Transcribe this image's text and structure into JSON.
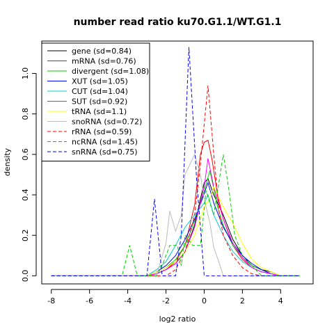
{
  "chart_data": {
    "type": "line",
    "title": "number read ratio ku70.G1.1/WT.G1.1",
    "xlabel": "log2 ratio",
    "ylabel": "density",
    "xlim": [
      -8.5,
      5.7
    ],
    "ylim": [
      -0.04,
      1.16
    ],
    "xticks": [
      -8,
      -6,
      -4,
      -2,
      0,
      2,
      4
    ],
    "yticks": [
      0.0,
      0.2,
      0.4,
      0.6,
      0.8,
      1.0
    ],
    "legend": "top-left",
    "series": [
      {
        "name": "gene (sd=0.84)",
        "color": "#000000",
        "dash": "solid",
        "x": [
          -8,
          -3,
          -2.5,
          -2,
          -1.5,
          -1,
          -0.5,
          -0.2,
          0,
          0.2,
          0.5,
          1,
          1.5,
          2,
          2.5,
          3,
          3.5,
          4,
          5
        ],
        "y": [
          0,
          0,
          0.01,
          0.03,
          0.06,
          0.12,
          0.25,
          0.38,
          0.46,
          0.48,
          0.4,
          0.3,
          0.18,
          0.1,
          0.05,
          0.03,
          0.02,
          0,
          0
        ]
      },
      {
        "name": "mRNA (sd=0.76)",
        "color": "#ff0000",
        "dash": "solid",
        "x": [
          -8,
          -3,
          -2.5,
          -2,
          -1.5,
          -1,
          -0.5,
          -0.2,
          0,
          0.2,
          0.4,
          0.7,
          1,
          1.5,
          2,
          2.5,
          3,
          3.5,
          4,
          5
        ],
        "y": [
          0,
          0,
          0.01,
          0.03,
          0.07,
          0.15,
          0.35,
          0.6,
          0.66,
          0.67,
          0.58,
          0.4,
          0.28,
          0.15,
          0.08,
          0.04,
          0.02,
          0.01,
          0,
          0
        ]
      },
      {
        "name": "divergent (sd=1.08)",
        "color": "#00cc00",
        "dash": "solid",
        "x": [
          -8,
          -3,
          -2.5,
          -2,
          -1.5,
          -1,
          -0.5,
          0,
          0.3,
          0.7,
          1,
          1.5,
          2,
          2.5,
          3,
          3.5,
          4,
          5
        ],
        "y": [
          0,
          0,
          0.02,
          0.04,
          0.08,
          0.15,
          0.27,
          0.42,
          0.52,
          0.34,
          0.25,
          0.15,
          0.09,
          0.05,
          0.03,
          0.01,
          0,
          0
        ]
      },
      {
        "name": "XUT (sd=1.05)",
        "color": "#0000ff",
        "dash": "solid",
        "x": [
          -8,
          -3,
          -2.5,
          -2,
          -1.5,
          -1,
          -0.5,
          -0.1,
          0.2,
          0.5,
          1,
          1.5,
          2,
          2.5,
          3,
          3.5,
          4,
          5
        ],
        "y": [
          0,
          0,
          0.02,
          0.05,
          0.1,
          0.18,
          0.28,
          0.38,
          0.46,
          0.36,
          0.24,
          0.16,
          0.1,
          0.06,
          0.03,
          0.01,
          0,
          0
        ]
      },
      {
        "name": "CUT (sd=1.04)",
        "color": "#00cccc",
        "dash": "solid",
        "x": [
          -8,
          -3,
          -2.5,
          -2,
          -1.5,
          -1,
          -0.5,
          0,
          0.2,
          0.5,
          1,
          1.5,
          2,
          2.5,
          3,
          3.5,
          4,
          5
        ],
        "y": [
          0,
          0,
          0.03,
          0.07,
          0.15,
          0.24,
          0.3,
          0.36,
          0.4,
          0.3,
          0.2,
          0.12,
          0.07,
          0.04,
          0.02,
          0.01,
          0,
          0
        ]
      },
      {
        "name": "SUT (sd=0.92)",
        "color": "#ff00ff",
        "dash": "solid",
        "x": [
          -8,
          -3,
          -2.5,
          -2,
          -1.5,
          -1,
          -0.5,
          0,
          0.2,
          0.5,
          1,
          1.5,
          2,
          2.5,
          3,
          3.5,
          4,
          5
        ],
        "y": [
          0,
          0,
          0.01,
          0.03,
          0.06,
          0.12,
          0.24,
          0.44,
          0.58,
          0.44,
          0.28,
          0.16,
          0.09,
          0.04,
          0.02,
          0.01,
          0,
          0
        ]
      },
      {
        "name": "tRNA (sd=1.1)",
        "color": "#ffff00",
        "dash": "solid",
        "x": [
          -8,
          -3,
          -2.5,
          -2,
          -1.5,
          -1,
          -0.5,
          0,
          0.3,
          0.5,
          1,
          1.5,
          2,
          2.5,
          3,
          3.5,
          4,
          5
        ],
        "y": [
          0,
          0,
          0.02,
          0.04,
          0.07,
          0.12,
          0.2,
          0.34,
          0.38,
          0.44,
          0.34,
          0.26,
          0.16,
          0.08,
          0.04,
          0.02,
          0,
          0
        ]
      },
      {
        "name": "snoRNA (sd=0.72)",
        "color": "#bbbbbb",
        "dash": "solid",
        "x": [
          -8,
          -2.5,
          -2,
          -1.8,
          -1.5,
          -1.2,
          -1,
          -0.7,
          -0.5,
          -0.2,
          0,
          0.3,
          0.5,
          0.8,
          1,
          2,
          5
        ],
        "y": [
          0,
          0,
          0.16,
          0.32,
          0.22,
          0.3,
          0.5,
          0.56,
          0.6,
          0.5,
          0.38,
          0.26,
          0.14,
          0.06,
          0,
          0,
          0
        ]
      },
      {
        "name": "rRNA (sd=0.59)",
        "color": "#ff0000",
        "dash": "dashed",
        "x": [
          -8,
          -2,
          -1.5,
          -1,
          -0.5,
          -0.2,
          0,
          0.2,
          0.5,
          0.8,
          1,
          1.5,
          2,
          2.5,
          3,
          5
        ],
        "y": [
          0,
          0,
          0.03,
          0.12,
          0.3,
          0.55,
          0.75,
          0.94,
          0.6,
          0.3,
          0.2,
          0.1,
          0.04,
          0.01,
          0,
          0
        ]
      },
      {
        "name": "ncRNA (sd=1.45)",
        "color": "#00cc00",
        "dash": "dashed",
        "x": [
          -8,
          -4.3,
          -3.9,
          -3.5,
          -2.5,
          -2.2,
          -1.8,
          -1.4,
          -1.2,
          -1,
          -0.6,
          -0.2,
          0.1,
          0.5,
          1,
          1.3,
          1.6,
          2,
          2.5,
          3,
          3.5,
          5
        ],
        "y": [
          0,
          0,
          0.15,
          0,
          0,
          0.05,
          0.15,
          0.15,
          0.05,
          0.2,
          0.15,
          0.15,
          0.42,
          0.3,
          0.6,
          0.42,
          0.2,
          0.1,
          0.05,
          0,
          0,
          0
        ]
      },
      {
        "name": "snRNA (sd=0.75)",
        "color": "#0000ff",
        "dash": "dashed",
        "x": [
          -8,
          -3.0,
          -2.6,
          -2.2,
          -1.5,
          -1.2,
          -0.8,
          -0.4,
          0,
          5
        ],
        "y": [
          0,
          0,
          0.38,
          0,
          0,
          0.2,
          1.13,
          0.48,
          0,
          0
        ]
      }
    ]
  }
}
